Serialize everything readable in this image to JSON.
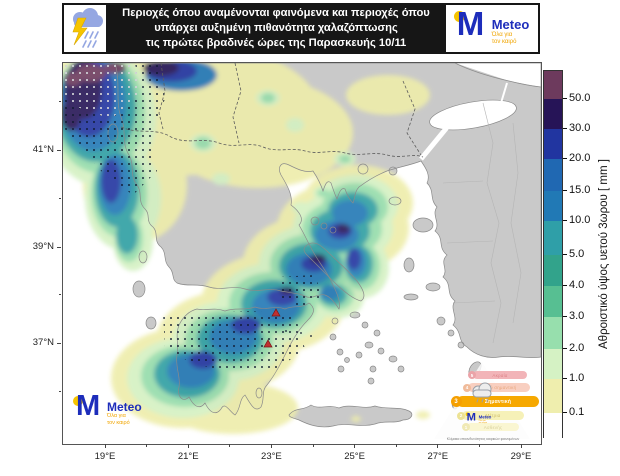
{
  "header": {
    "line1": "Περιοχές όπου αναμένονται φαινόμενα και περιοχές όπου",
    "line2": "υπάρχει αυξημένη πιθανότητα χαλαζόπτωσης",
    "line3": "τις πρώτες βραδινές ώρες της Παρασκευής 10/11",
    "storm_icon": "storm-cloud-lightning-rain-icon",
    "logo": {
      "brand": "Meteo",
      "tagline1": "Όλα για",
      "tagline2": "τον καιρό"
    }
  },
  "map": {
    "x_axis": {
      "ticks": [
        "19°E",
        "21°E",
        "23°E",
        "25°E",
        "27°E",
        "29°E"
      ]
    },
    "y_axis": {
      "ticks": [
        "41°N",
        "39°N",
        "37°N"
      ]
    },
    "markers": {
      "hail_marker_count": 2,
      "marker_color": "#bb2a20"
    },
    "stipple_meaning": "dotted-areas-increased-hail-probability"
  },
  "colorbar": {
    "title": "Αθροιστικό ύψος υετού 3ωρου [ mm ]",
    "tick_labels": [
      "50.0",
      "30.0",
      "20.0",
      "15.0",
      "10.0",
      "5.0",
      "4.0",
      "3.0",
      "2.0",
      "1.0",
      "0.1"
    ],
    "colors_top_to_bottom": [
      "#6d3a5d",
      "#261457",
      "#2135a0",
      "#2068b2",
      "#2179b5",
      "#2f9fa8",
      "#32a38b",
      "#57bf92",
      "#97dfad",
      "#d5f2c4",
      "#efeeae",
      "#ffffff"
    ]
  },
  "pyramid": {
    "levels": [
      {
        "num": "5",
        "label": "Ακραία",
        "color": "#f2b4b8"
      },
      {
        "num": "4",
        "label": "Πολύ σημαντική",
        "color": "#f8cfc0"
      },
      {
        "num": "3",
        "label": "Σημαντική",
        "color": "#f6a800",
        "active": true
      },
      {
        "num": "2",
        "label": "Μέτρια",
        "color": "#f6f1b8"
      },
      {
        "num": "1",
        "label": "Ασθενής",
        "color": "#faf6d2"
      }
    ],
    "footer": "Κλίμακα επικινδυνότητας καιρικών φαινομένων"
  },
  "chart_data": {
    "type": "heatmap",
    "subtype": "geographic-precipitation-map",
    "region": "Greece and the Aegean",
    "x_ticks": [
      "19°E",
      "21°E",
      "23°E",
      "25°E",
      "27°E",
      "29°E"
    ],
    "y_ticks": [
      "41°N",
      "39°N",
      "37°N"
    ],
    "colorbar_label": "Αθροιστικό ύψος υετού 3ωρου [ mm ]",
    "colorbar_levels_mm": [
      0.1,
      1.0,
      2.0,
      3.0,
      4.0,
      5.0,
      10.0,
      15.0,
      20.0,
      30.0,
      50.0
    ],
    "max_band_exceeds_mm": 50.0,
    "high_precip_areas": [
      "northwest Greece / Albanian coast",
      "western & central Greece",
      "Peloponnese",
      "Attica and Evia"
    ],
    "stippled_hail_probability_areas": [
      "northwest corner (Ionian / Albanian coast)",
      "southwest Peloponnese",
      "Saronic / south Evia"
    ],
    "point_markers": 2
  }
}
